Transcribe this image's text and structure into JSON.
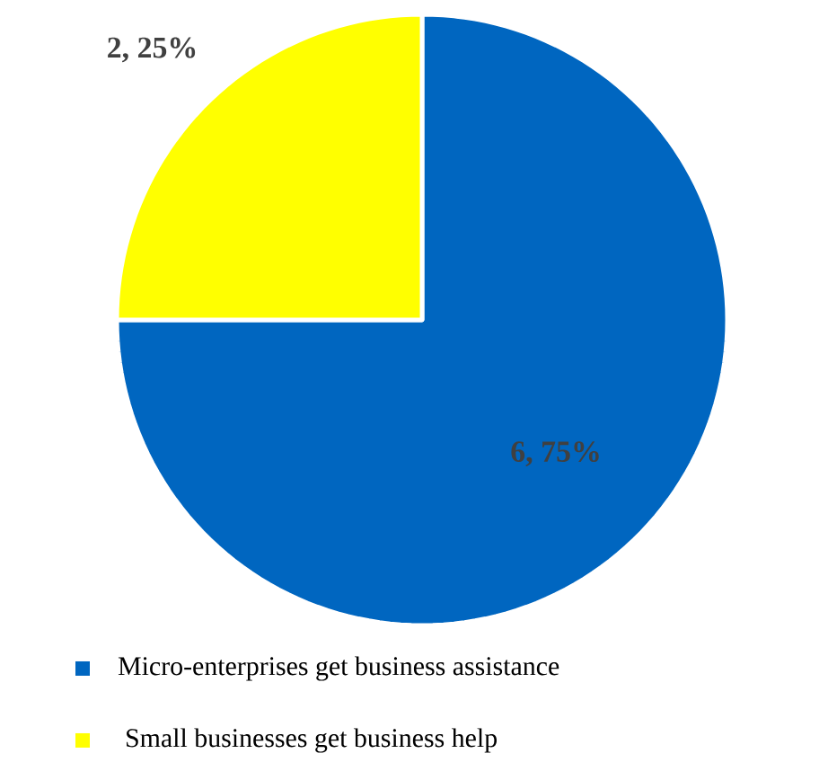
{
  "chart_data": {
    "type": "pie",
    "categories": [
      "Micro-enterprises get business assistance",
      "Small businesses get business help"
    ],
    "values": [
      6,
      2
    ],
    "colors": [
      "#0066c0",
      "#ffff00"
    ],
    "value_labels": [
      "6, 75%",
      "2, 25%"
    ],
    "legend": "bottom"
  }
}
